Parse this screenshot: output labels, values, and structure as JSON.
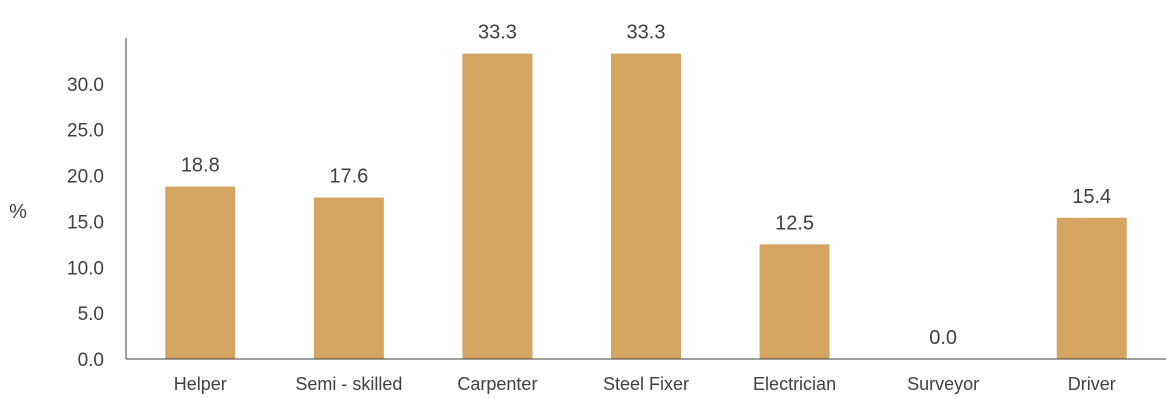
{
  "chart_data": {
    "type": "bar",
    "ylabel": "%",
    "xlabel": "",
    "title": "",
    "categories": [
      "Helper",
      "Semi - skilled",
      "Carpenter",
      "Steel Fixer",
      "Electrician",
      "Surveyor",
      "Driver"
    ],
    "values": [
      18.8,
      17.6,
      33.3,
      33.3,
      12.5,
      0.0,
      15.4
    ],
    "value_labels": [
      "18.8",
      "17.6",
      "33.3",
      "33.3",
      "12.5",
      "0.0",
      "15.4"
    ],
    "yticks": [
      "0.0",
      "5.0",
      "10.0",
      "15.0",
      "20.0",
      "25.0",
      "30.0"
    ],
    "ytick_values": [
      0,
      5,
      10,
      15,
      20,
      25,
      30
    ],
    "ylim": [
      0,
      35
    ],
    "grid": false,
    "legend": "none",
    "bar_color": "#D4A461",
    "axis_color": "#404040"
  }
}
